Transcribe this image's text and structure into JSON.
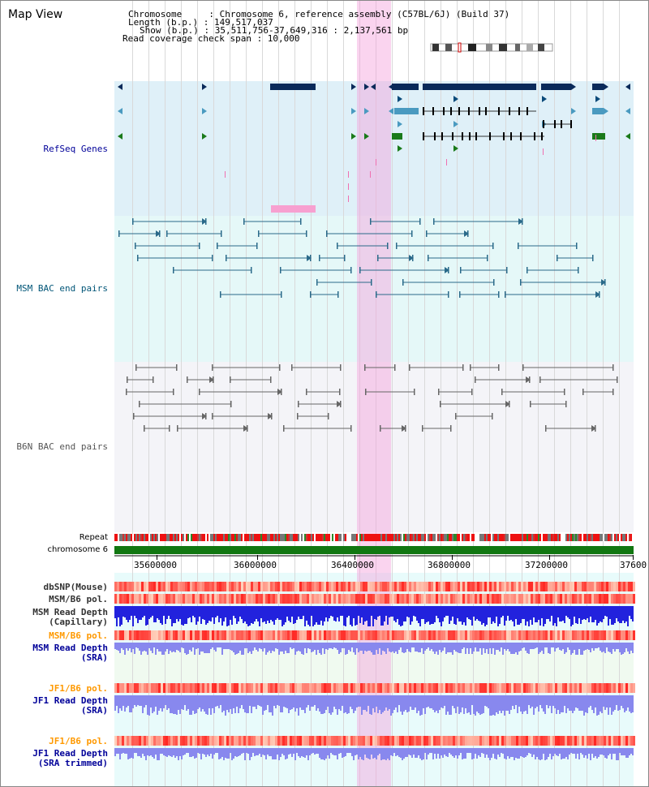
{
  "header": {
    "title": "Map View",
    "lines": [
      "Chromosome     : Chromosome 6, reference assembly (C57BL/6J) (Build 37)",
      "Length (b.p.) : 149,517,037",
      "Show (b.p.) : 35,511,756-37,649,316 : 2,137,561 bp",
      "Read coverage check span : 10,000"
    ]
  },
  "tracks": {
    "refseq": "RefSeq Genes",
    "msm_bac": "MSM BAC end pairs",
    "b6n_bac": "B6N BAC end pairs",
    "repeat": "Repeat",
    "chromosome": "chromosome 6",
    "dbsnp": "dbSNP(Mouse)",
    "msm_b6_pol_1": "MSM/B6 pol.",
    "msm_depth_cap_1": "MSM Read Depth",
    "msm_depth_cap_2": "(Capillary)",
    "msm_b6_pol_2": "MSM/B6 pol.",
    "msm_depth_sra_1": "MSM Read Depth",
    "msm_depth_sra_2": "(SRA)",
    "jf1_b6_pol_1": "JF1/B6 pol.",
    "jf1_depth_sra_1": "JF1 Read Depth",
    "jf1_depth_sra_2": "(SRA)",
    "jf1_b6_pol_2": "JF1/B6 pol.",
    "jf1_depth_trim_1": "JF1 Read Depth",
    "jf1_depth_trim_2": "(SRA trimmed)"
  },
  "axis": {
    "ticks": [
      "35600000",
      "36000000",
      "36400000",
      "36800000",
      "37200000",
      "37600"
    ]
  },
  "colors": {
    "refseq_label": "#000099",
    "msm_label": "#005577",
    "b6n_label": "#555555",
    "orange_label": "#ff9900",
    "blue_label": "#000099",
    "highlight": "#f5a0dc"
  }
}
